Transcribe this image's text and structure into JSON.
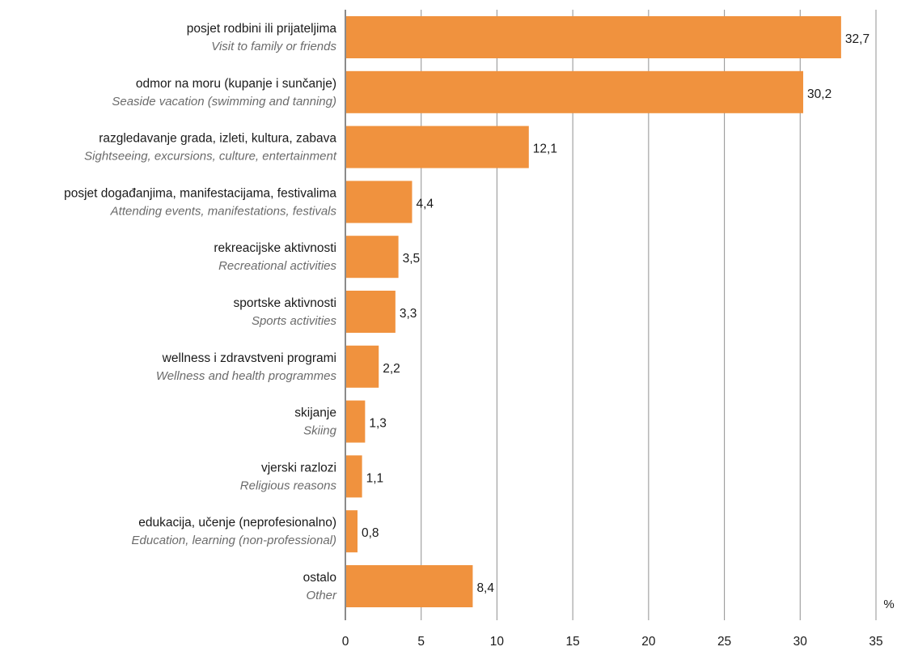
{
  "chart_data": {
    "type": "bar",
    "orientation": "horizontal",
    "categories": [
      {
        "label": "posjet rodbini ili prijateljima",
        "label_en": "Visit to family or friends"
      },
      {
        "label": "odmor na moru (kupanje i sunčanje)",
        "label_en": "Seaside vacation (swimming and tanning)"
      },
      {
        "label": "razgledavanje grada, izleti, kultura, zabava",
        "label_en": "Sightseeing, excursions, culture, entertainment"
      },
      {
        "label": "posjet događanjima, manifestacijama, festivalima",
        "label_en": "Attending events, manifestations, festivals"
      },
      {
        "label": "rekreacijske aktivnosti",
        "label_en": "Recreational activities"
      },
      {
        "label": "sportske aktivnosti",
        "label_en": "Sports activities"
      },
      {
        "label": "wellness i zdravstveni programi",
        "label_en": "Wellness and health programmes"
      },
      {
        "label": "skijanje",
        "label_en": "Skiing"
      },
      {
        "label": "vjerski razlozi",
        "label_en": "Religious reasons"
      },
      {
        "label": "edukacija, učenje (neprofesionalno)",
        "label_en": "Education, learning (non-professional)"
      },
      {
        "label": "ostalo",
        "label_en": "Other"
      }
    ],
    "values": [
      32.7,
      30.2,
      12.1,
      4.4,
      3.5,
      3.3,
      2.2,
      1.3,
      1.1,
      0.8,
      8.4
    ],
    "value_labels": [
      "32,7",
      "30,2",
      "12,1",
      "4,4",
      "3,5",
      "3,3",
      "2,2",
      "1,3",
      "1,1",
      "0,8",
      "8,4"
    ],
    "xlim": [
      0,
      35
    ],
    "x_ticks": [
      0,
      5,
      10,
      15,
      20,
      25,
      30,
      35
    ],
    "unit": "%",
    "grid": true,
    "bar_color": "#f0923e",
    "grid_color": "#9a9a9a"
  }
}
